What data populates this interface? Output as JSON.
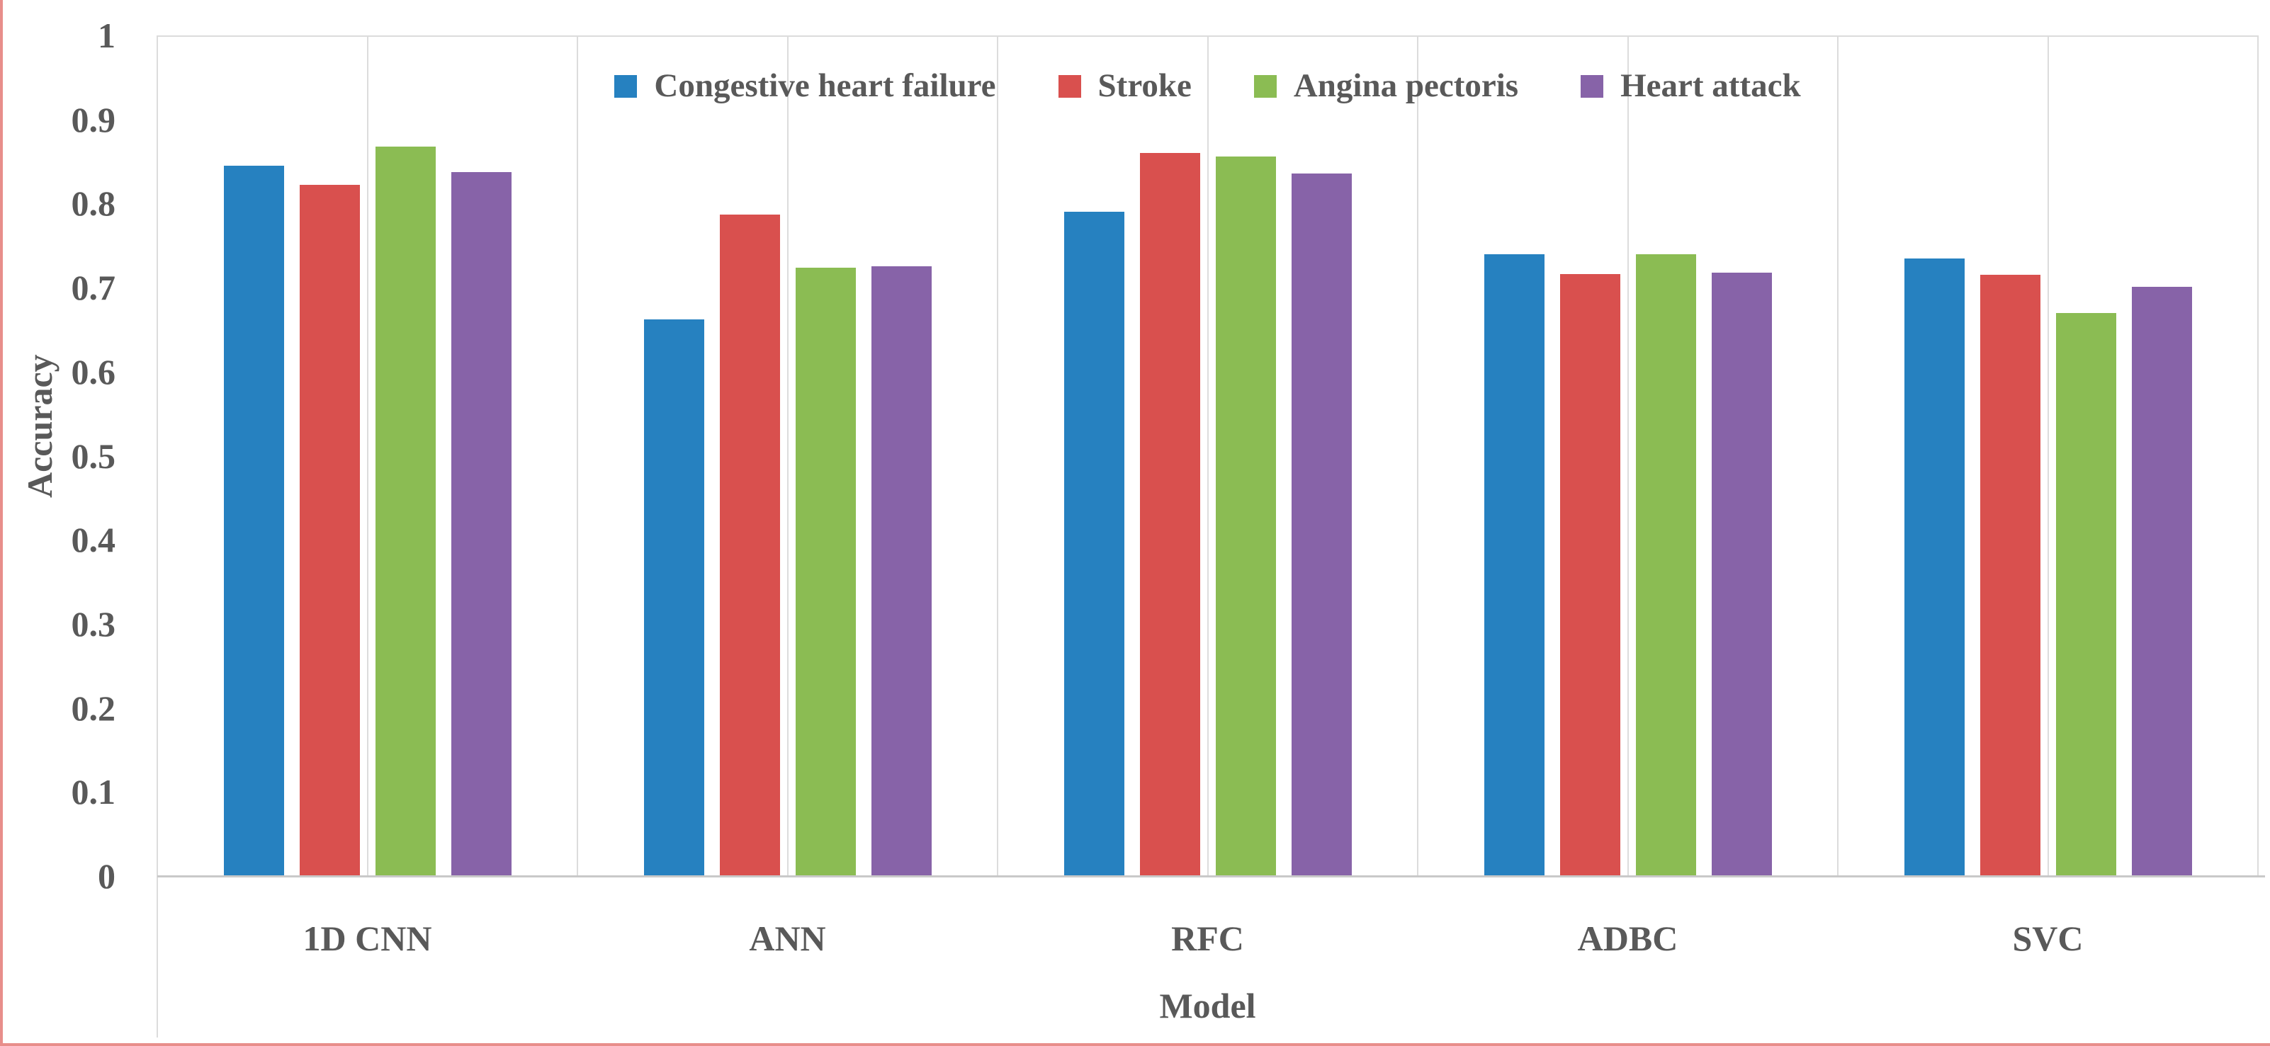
{
  "chart_data": {
    "type": "bar",
    "title": "",
    "xlabel": "Model",
    "ylabel": "Accuracy",
    "categories": [
      "1D CNN",
      "ANN",
      "RFC",
      "ADBC",
      "SVC"
    ],
    "series": [
      {
        "name": "Congestive heart failure",
        "color": "#2681C0",
        "values": [
          0.845,
          0.662,
          0.79,
          0.74,
          0.735
        ]
      },
      {
        "name": "Stroke",
        "color": "#D9504E",
        "values": [
          0.822,
          0.787,
          0.86,
          0.716,
          0.715
        ]
      },
      {
        "name": "Angina pectoris",
        "color": "#8BBC53",
        "values": [
          0.868,
          0.724,
          0.856,
          0.74,
          0.67
        ]
      },
      {
        "name": "Heart attack",
        "color": "#8763A8",
        "values": [
          0.837,
          0.725,
          0.836,
          0.718,
          0.701
        ]
      }
    ],
    "ylim": [
      0,
      1
    ],
    "yticks": [
      "1",
      "0.9",
      "0.8",
      "0.7",
      "0.6",
      "0.5",
      "0.4",
      "0.3",
      "0.2",
      "0.1",
      "0"
    ],
    "ytick_values": [
      1,
      0.9,
      0.8,
      0.7,
      0.6,
      0.5,
      0.4,
      0.3,
      0.2,
      0.1,
      0
    ],
    "grid": "vertical lines at category boundaries and centers, single top line",
    "legend_position": "top-center"
  },
  "colors": {
    "text": "#595959",
    "gridline": "#dcdcdc",
    "baseline": "#c9c9c9",
    "page_edge": "#e88e8b"
  }
}
